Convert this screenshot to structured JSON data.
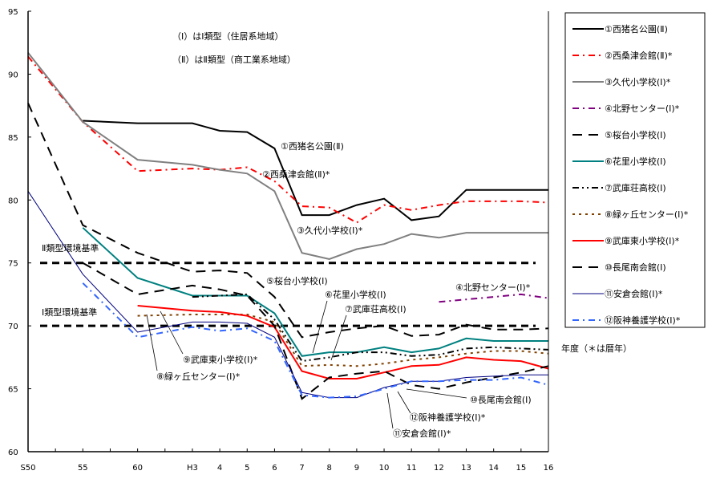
{
  "chart_data": {
    "type": "line",
    "title": "",
    "xlabel": "年度（＊は暦年）",
    "ylabel": "",
    "ylim": [
      60,
      95
    ],
    "yticks": [
      "95",
      "90",
      "85",
      "80",
      "75",
      "70",
      "65",
      "60"
    ],
    "x_tick_labels": [
      "S50",
      "",
      "55",
      "",
      "60",
      "",
      "H3",
      "4",
      "5",
      "6",
      "7",
      "8",
      "9",
      "10",
      "11",
      "12",
      "13",
      "14",
      "15",
      "16"
    ],
    "notes": [
      "（Ⅰ）はⅠ類型（住居系地域）",
      "（Ⅱ）はⅡ類型（商工業系地域）"
    ],
    "reference_lines": [
      {
        "label": "Ⅱ類型環境基準",
        "value": 75
      },
      {
        "label": "Ⅰ類型環境基準",
        "value": 70
      }
    ],
    "legend_position": "right",
    "series": [
      {
        "name": "①西猪名公園(Ⅱ)",
        "color": "#000000",
        "dash": "solid",
        "values": [
          null,
          null,
          86.3,
          null,
          86.1,
          null,
          86.1,
          85.5,
          85.4,
          84.1,
          78.8,
          78.8,
          79.6,
          80.1,
          78.4,
          78.7,
          80.8,
          80.8,
          80.8,
          80.8
        ]
      },
      {
        "name": "②西桑津会館(Ⅱ)*",
        "color": "#ff0000",
        "dash": "dashdot",
        "values": [
          91.4,
          null,
          86.2,
          null,
          82.3,
          null,
          82.5,
          82.4,
          82.6,
          81.5,
          79.5,
          79.4,
          78.2,
          79.6,
          79.2,
          79.6,
          79.9,
          79.9,
          79.9,
          79.8
        ]
      },
      {
        "name": "③久代小学校(Ⅰ)*",
        "color": "#808080",
        "dash": "solid",
        "values": [
          91.7,
          null,
          86.2,
          null,
          83.2,
          null,
          82.8,
          82.4,
          82.1,
          80.7,
          75.8,
          75.3,
          76.1,
          76.5,
          77.3,
          77.0,
          77.4,
          77.4,
          77.4,
          77.4
        ]
      },
      {
        "name": "④北野センター(Ⅰ)*",
        "color": "#800080",
        "dash": "dashdot",
        "values": [
          null,
          null,
          null,
          null,
          null,
          null,
          null,
          null,
          null,
          null,
          null,
          null,
          null,
          null,
          null,
          71.9,
          72.1,
          72.3,
          72.5,
          72.2
        ]
      },
      {
        "name": "⑤桜台小学校(Ⅰ)",
        "color": "#000000",
        "dash": "longdash",
        "values": [
          87.7,
          null,
          78.0,
          null,
          75.8,
          null,
          74.3,
          74.4,
          74.2,
          72.3,
          69.1,
          69.5,
          69.8,
          70.0,
          69.2,
          69.3,
          70.1,
          69.7,
          69.7,
          69.8
        ]
      },
      {
        "name": "⑥花里小学校(Ⅰ)",
        "color": "#008080",
        "dash": "solid",
        "values": [
          null,
          null,
          77.8,
          null,
          73.8,
          null,
          72.4,
          72.4,
          72.4,
          71.0,
          67.6,
          67.9,
          67.9,
          68.3,
          67.9,
          68.2,
          69.0,
          68.8,
          68.8,
          68.8
        ]
      },
      {
        "name": "⑦武庫荘高校(Ⅰ)",
        "color": "#000000",
        "dash": "dashdotdot",
        "values": [
          null,
          null,
          null,
          null,
          null,
          null,
          72.3,
          72.4,
          72.5,
          70.5,
          67.2,
          67.5,
          67.9,
          67.9,
          67.6,
          67.7,
          68.2,
          68.3,
          68.2,
          68.1
        ]
      },
      {
        "name": "⑧緑ヶ丘センター(Ⅰ)*",
        "color": "#804000",
        "dash": "dotted",
        "values": [
          null,
          null,
          null,
          null,
          70.8,
          null,
          70.9,
          70.9,
          70.9,
          70.3,
          66.8,
          66.9,
          66.8,
          67.0,
          67.3,
          67.5,
          67.8,
          68.0,
          68.0,
          67.8
        ]
      },
      {
        "name": "⑨武庫東小学校(Ⅰ)*",
        "color": "#ff0000",
        "dash": "solid",
        "values": [
          null,
          null,
          null,
          null,
          71.6,
          null,
          71.2,
          71.1,
          70.8,
          69.9,
          66.4,
          65.8,
          65.8,
          66.3,
          66.8,
          66.9,
          67.5,
          67.3,
          67.2,
          66.6
        ]
      },
      {
        "name": "⑩長尾南会館(Ⅰ)",
        "color": "#000000",
        "dash": "longdash",
        "values": [
          null,
          null,
          75.0,
          null,
          72.5,
          null,
          73.2,
          72.9,
          72.4,
          70.0,
          64.2,
          65.9,
          66.2,
          66.4,
          65.3,
          65.0,
          65.5,
          65.9,
          66.3,
          66.8
        ]
      },
      {
        "name": "⑪安倉会館(Ⅰ)*",
        "color": "#000080",
        "dash": "solid",
        "values": [
          80.7,
          null,
          74.1,
          null,
          69.5,
          null,
          70.3,
          70.3,
          70.2,
          69.1,
          64.7,
          64.3,
          64.3,
          65.1,
          65.6,
          65.6,
          65.9,
          66.0,
          66.1,
          66.1
        ]
      },
      {
        "name": "⑫阪神養護学校(Ⅰ)*",
        "color": "#3366ff",
        "dash": "dashdot",
        "values": [
          null,
          null,
          73.4,
          null,
          69.1,
          null,
          69.9,
          69.6,
          69.8,
          68.8,
          64.5,
          64.3,
          64.4,
          65.0,
          65.6,
          65.6,
          65.7,
          65.7,
          65.9,
          65.3
        ]
      }
    ],
    "annotations": [
      "①西猪名公園(Ⅱ)",
      "②西桑津会館(Ⅱ)*",
      "③久代小学校(Ⅰ)*",
      "④北野センター(Ⅰ)*",
      "⑤桜台小学校(Ⅰ)",
      "⑥花里小学校(Ⅰ)",
      "⑦武庫荘高校(Ⅰ)",
      "⑧緑ヶ丘センター(Ⅰ)*",
      "⑨武庫東小学校(Ⅰ)*",
      "⑩長尾南会館(Ⅰ)",
      "⑪安倉会館(Ⅰ)*",
      "⑫阪神養護学校(Ⅰ)*"
    ]
  }
}
